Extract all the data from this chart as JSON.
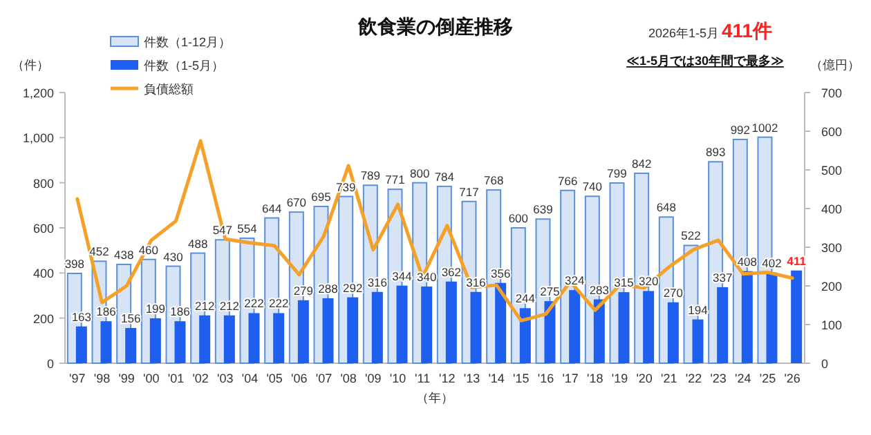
{
  "chart_data": {
    "type": "bar",
    "title": "飲食業の倒産推移",
    "categories": [
      "'97",
      "'98",
      "'99",
      "'00",
      "'01",
      "'02",
      "'03",
      "'04",
      "'05",
      "'06",
      "'07",
      "'08",
      "'09",
      "'10",
      "'11",
      "'12",
      "'13",
      "'14",
      "'15",
      "'16",
      "'17",
      "'18",
      "'19",
      "'20",
      "'21",
      "'22",
      "'23",
      "'24",
      "'25",
      "'26"
    ],
    "series": [
      {
        "name": "件数（1-12月）",
        "color": "#d6e4f5",
        "values": [
          398,
          452,
          438,
          460,
          430,
          488,
          547,
          554,
          644,
          670,
          695,
          739,
          789,
          771,
          800,
          784,
          717,
          768,
          600,
          639,
          766,
          740,
          799,
          842,
          648,
          522,
          893,
          992,
          1002,
          null
        ],
        "value_labels": [
          "398",
          "452",
          "438",
          "460",
          "430",
          "488",
          "547",
          "554",
          "644",
          "670",
          "695",
          "739",
          "789",
          "771",
          "800",
          "784",
          "717",
          "768",
          "600",
          "639",
          "766",
          "740",
          "799",
          "842",
          "648",
          "522",
          "893",
          "992",
          "1002",
          null
        ]
      },
      {
        "name": "件数（1-5月）",
        "color": "#1f5ff0",
        "values": [
          163,
          186,
          156,
          199,
          186,
          212,
          212,
          222,
          222,
          279,
          288,
          292,
          316,
          344,
          340,
          362,
          316,
          356,
          244,
          275,
          324,
          283,
          315,
          320,
          270,
          194,
          337,
          408,
          402,
          411
        ],
        "value_labels": [
          "163",
          "186",
          "156",
          "199",
          "186",
          "212",
          "212",
          "222",
          "222",
          "279",
          "288",
          "292",
          "316",
          "344",
          "340",
          "362",
          "316",
          "356",
          "244",
          "275",
          "324",
          "283",
          "315",
          "320",
          "270",
          "194",
          "337",
          "408",
          "402",
          "411"
        ]
      },
      {
        "name": "負債総額",
        "type": "line",
        "axis": "y2",
        "color": "#f5a028",
        "values": [
          425,
          157,
          200,
          318,
          368,
          575,
          321,
          311,
          304,
          229,
          329,
          511,
          293,
          411,
          223,
          356,
          196,
          202,
          110,
          127,
          211,
          137,
          202,
          195,
          249,
          294,
          318,
          231,
          235,
          220
        ]
      }
    ],
    "xlabel": "（年）",
    "ylabel": "（件）",
    "y2label": "（億円）",
    "ylim": [
      0,
      1200
    ],
    "yticks": [
      0,
      200,
      400,
      600,
      800,
      {
        "value": 1000,
        "label": "1,000"
      },
      {
        "value": 1200,
        "label": "1,200"
      }
    ],
    "y2lim": [
      0,
      700
    ],
    "y2ticks": [
      0,
      100,
      200,
      300,
      400,
      500,
      600,
      700
    ],
    "legend": "top left",
    "annotations": [
      "2026年1-5月",
      "411件",
      "≪1-5月では30年間で最多≫"
    ]
  }
}
